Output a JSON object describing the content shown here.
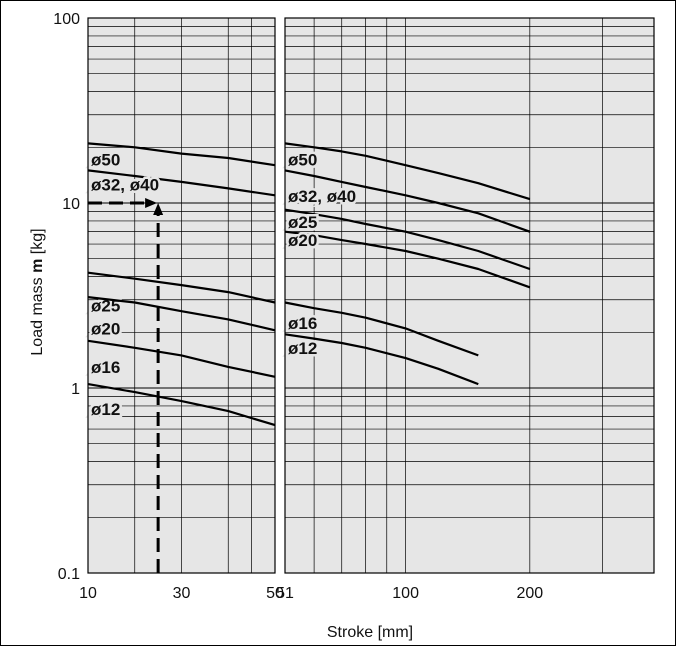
{
  "chart_data": {
    "type": "line",
    "xlabel": "Stroke [mm]",
    "ylabel_prefix": "Load mass ",
    "ylabel_symbol": "m",
    "ylabel_suffix": " [kg]",
    "y_scale": "log",
    "ylim": [
      0.1,
      100
    ],
    "y_ticks": [
      {
        "value": 0.1,
        "label": "0.1"
      },
      {
        "value": 1,
        "label": "1"
      },
      {
        "value": 10,
        "label": "10"
      },
      {
        "value": 100,
        "label": "100"
      }
    ],
    "grid": true,
    "panels": [
      {
        "id": "left",
        "xlim": [
          10,
          50
        ],
        "x_scale": "linear",
        "x_ticks": [
          {
            "value": 10,
            "label": "10"
          },
          {
            "value": 30,
            "label": "30"
          },
          {
            "value": 50,
            "label": "50"
          }
        ],
        "x_gridlines": [
          20,
          30,
          40,
          45
        ],
        "series": [
          {
            "name": "ø50",
            "x": [
              10,
              20,
              30,
              40,
              50
            ],
            "y": [
              21,
              20,
              18.5,
              17.5,
              16
            ]
          },
          {
            "name": "ø32, ø40",
            "x": [
              10,
              20,
              30,
              40,
              50
            ],
            "y": [
              15,
              14,
              13,
              12,
              11
            ]
          },
          {
            "name": "ø25",
            "x": [
              10,
              20,
              30,
              40,
              50
            ],
            "y": [
              4.2,
              3.9,
              3.6,
              3.3,
              2.9
            ]
          },
          {
            "name": "ø20",
            "x": [
              10,
              20,
              30,
              40,
              50
            ],
            "y": [
              3.1,
              2.9,
              2.6,
              2.35,
              2.05
            ]
          },
          {
            "name": "ø16",
            "x": [
              10,
              20,
              30,
              40,
              50
            ],
            "y": [
              1.8,
              1.65,
              1.5,
              1.3,
              1.15
            ]
          },
          {
            "name": "ø12",
            "x": [
              10,
              20,
              30,
              40,
              50
            ],
            "y": [
              1.05,
              0.95,
              0.85,
              0.75,
              0.63
            ]
          }
        ],
        "label_y": [
          17.2,
          12.6,
          2.8,
          2.1,
          1.3,
          0.77
        ]
      },
      {
        "id": "right",
        "xlim": [
          51,
          400
        ],
        "x_scale": "log",
        "x_ticks": [
          {
            "value": 51,
            "label": "51"
          },
          {
            "value": 100,
            "label": "100"
          },
          {
            "value": 200,
            "label": "200"
          }
        ],
        "x_gridlines": [
          60,
          70,
          80,
          90,
          100,
          200,
          300
        ],
        "series": [
          {
            "name": "ø50",
            "x": [
              51,
              60,
              70,
              80,
              100,
              120,
              150,
              200
            ],
            "y": [
              21,
              20,
              19,
              18,
              16,
              14.5,
              12.8,
              10.5
            ]
          },
          {
            "name": "ø32, ø40",
            "x": [
              51,
              60,
              70,
              80,
              100,
              120,
              150,
              200
            ],
            "y": [
              15,
              14,
              13,
              12.2,
              11,
              10,
              8.8,
              7
            ]
          },
          {
            "name": "ø25",
            "x": [
              51,
              60,
              70,
              80,
              100,
              120,
              150,
              200
            ],
            "y": [
              9.2,
              8.7,
              8.2,
              7.7,
              7,
              6.3,
              5.5,
              4.4
            ]
          },
          {
            "name": "ø20",
            "x": [
              51,
              60,
              70,
              80,
              100,
              120,
              150,
              200
            ],
            "y": [
              7,
              6.7,
              6.3,
              6,
              5.5,
              5,
              4.4,
              3.5
            ]
          },
          {
            "name": "ø16",
            "x": [
              51,
              60,
              70,
              80,
              100,
              120,
              150
            ],
            "y": [
              2.9,
              2.7,
              2.55,
              2.4,
              2.1,
              1.8,
              1.5
            ]
          },
          {
            "name": "ø12",
            "x": [
              51,
              60,
              70,
              80,
              100,
              120,
              150
            ],
            "y": [
              1.95,
              1.85,
              1.75,
              1.65,
              1.45,
              1.27,
              1.05
            ]
          }
        ],
        "label_y": [
          17.2,
          10.9,
          7.9,
          6.3,
          2.25,
          1.65
        ]
      }
    ],
    "annotation": {
      "type": "example-lookup",
      "x": 25,
      "y": 10,
      "panel": "left"
    }
  }
}
